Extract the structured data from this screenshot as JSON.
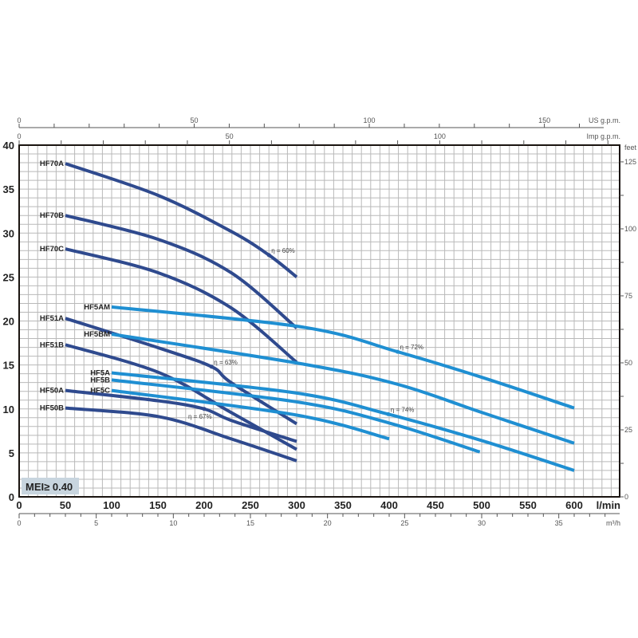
{
  "chart_data": {
    "type": "line",
    "title": "",
    "xlabel": "l/min",
    "ylabel": "",
    "xlim": [
      0,
      650
    ],
    "ylim": [
      0,
      40
    ],
    "grid": true,
    "x_ticks": [
      0,
      50,
      100,
      150,
      200,
      250,
      300,
      350,
      400,
      450,
      500,
      550,
      600
    ],
    "y_ticks": [
      0,
      5,
      10,
      15,
      20,
      25,
      30,
      35,
      40
    ],
    "secondary_axes": {
      "us_gpm": {
        "label": "US g.p.m.",
        "ticks": [
          0,
          50,
          100,
          150
        ]
      },
      "imp_gpm": {
        "label": "Imp g.p.m.",
        "ticks": [
          0,
          50,
          100
        ]
      },
      "m3h": {
        "label": "m³/h",
        "ticks": [
          0,
          5,
          10,
          15,
          20,
          25,
          30,
          35
        ]
      },
      "feet": {
        "label": "feet",
        "ticks": [
          0,
          25,
          50,
          75,
          100,
          125
        ]
      }
    },
    "badge": "MEI≥ 0.40",
    "colors": {
      "dark": "#2f4a8e",
      "light": "#1f8fd2"
    },
    "series": [
      {
        "name": "HF70A",
        "color": "dark",
        "x": [
          50,
          150,
          229,
          270,
          300
        ],
        "y": [
          37.9,
          34.3,
          30.2,
          27.5,
          25.0
        ]
      },
      {
        "name": "HF70B",
        "color": "dark",
        "x": [
          50,
          150,
          229,
          300
        ],
        "y": [
          32.0,
          29.3,
          25.5,
          19.2
        ]
      },
      {
        "name": "HF70C",
        "color": "dark",
        "x": [
          50,
          150,
          229,
          300
        ],
        "y": [
          28.2,
          25.5,
          21.5,
          15.3
        ]
      },
      {
        "name": "HF51A",
        "color": "dark",
        "x": [
          50,
          152,
          208,
          229,
          300
        ],
        "y": [
          20.3,
          16.9,
          14.8,
          13.0,
          8.3
        ]
      },
      {
        "name": "HF51B",
        "color": "dark",
        "x": [
          50,
          152,
          229,
          300
        ],
        "y": [
          17.3,
          14.1,
          9.6,
          5.4
        ]
      },
      {
        "name": "HF50A",
        "color": "dark",
        "x": [
          50,
          152,
          200,
          229,
          300
        ],
        "y": [
          12.1,
          10.9,
          10.0,
          8.7,
          6.3
        ]
      },
      {
        "name": "HF50B",
        "color": "dark",
        "x": [
          50,
          152,
          229,
          300
        ],
        "y": [
          10.1,
          9.1,
          6.6,
          4.1
        ]
      },
      {
        "name": "HF5AM",
        "color": "light",
        "x": [
          100,
          307,
          409,
          500,
          600
        ],
        "y": [
          21.6,
          19.3,
          16.5,
          13.6,
          10.1
        ]
      },
      {
        "name": "HF5BM",
        "color": "light",
        "x": [
          100,
          307,
          409,
          500,
          600
        ],
        "y": [
          18.5,
          15.1,
          12.8,
          9.6,
          6.1
        ]
      },
      {
        "name": "HF5A",
        "color": "light",
        "x": [
          100,
          300,
          399,
          500,
          600
        ],
        "y": [
          14.1,
          11.8,
          9.4,
          6.4,
          3.0
        ]
      },
      {
        "name": "HF5B",
        "color": "light",
        "x": [
          100,
          300,
          400,
          498
        ],
        "y": [
          13.3,
          10.8,
          8.4,
          5.1
        ]
      },
      {
        "name": "HF5C",
        "color": "light",
        "x": [
          100,
          300,
          400
        ],
        "y": [
          12.1,
          9.3,
          6.6
        ]
      }
    ],
    "annotations": [
      {
        "text": "η = 60%",
        "series": "HF70A",
        "x": 270,
        "y": 27.5
      },
      {
        "text": "η = 63%",
        "series": "HF51A",
        "x": 208,
        "y": 14.8
      },
      {
        "text": "η = 67%",
        "series": "HF50A",
        "x": 200,
        "y": 10.0
      },
      {
        "text": "η = 72%",
        "series": "HF5AM",
        "x": 409,
        "y": 16.5
      },
      {
        "text": "η = 74%",
        "series": "HF5A",
        "x": 399,
        "y": 9.4
      }
    ]
  }
}
